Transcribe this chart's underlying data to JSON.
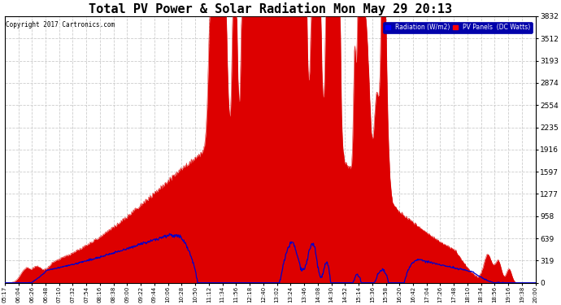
{
  "title": "Total PV Power & Solar Radiation Mon May 29 20:13",
  "copyright": "Copyright 2017 Cartronics.com",
  "ylabel_right_ticks": [
    0.0,
    319.3,
    638.6,
    957.9,
    1277.3,
    1596.6,
    1915.9,
    2235.2,
    2554.5,
    2873.8,
    3193.2,
    3512.5,
    3831.8
  ],
  "ymax": 3831.8,
  "ymin": 0.0,
  "legend_labels": [
    "Radiation (W/m2)",
    "PV Panels  (DC Watts)"
  ],
  "legend_colors": [
    "blue",
    "red"
  ],
  "bg_color": "#ffffff",
  "plot_bg_color": "#ffffff",
  "grid_color": "#cccccc",
  "title_fontsize": 11,
  "pv_color": "#dd0000",
  "radiation_color": "#0000cc",
  "x_tick_labels": [
    "05:17",
    "06:04",
    "06:26",
    "06:48",
    "07:10",
    "07:32",
    "07:54",
    "08:16",
    "08:38",
    "09:00",
    "09:22",
    "09:44",
    "10:06",
    "10:28",
    "10:50",
    "11:12",
    "11:34",
    "11:56",
    "12:18",
    "12:40",
    "13:02",
    "13:24",
    "13:46",
    "14:08",
    "14:30",
    "14:52",
    "15:14",
    "15:36",
    "15:58",
    "16:20",
    "16:42",
    "17:04",
    "17:26",
    "17:48",
    "18:10",
    "18:34",
    "18:56",
    "19:16",
    "19:38",
    "20:00"
  ]
}
